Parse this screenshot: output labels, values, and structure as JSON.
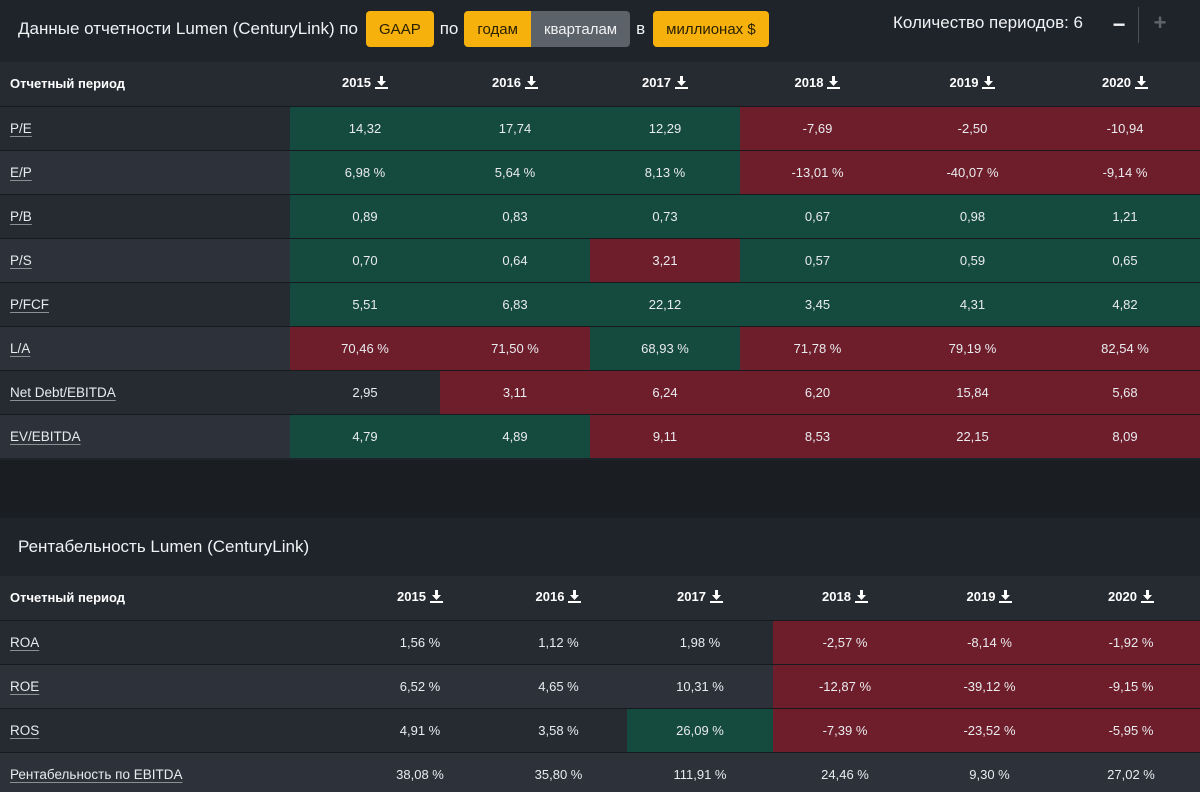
{
  "toolbar": {
    "prefix": "Данные отчетности Lumen (CenturyLink) по",
    "standard_btn": "GAAP",
    "by_text": "по",
    "years_btn": "годам",
    "quarters_btn": "кварталам",
    "in_text": "в",
    "units_btn": "миллионах $",
    "periods_label": "Количество периодов: 6",
    "minus": "−",
    "plus": "+"
  },
  "colors": {
    "accent": "#f6b10d",
    "positive": "#154a3e",
    "negative": "#6e1d2b"
  },
  "multiples": {
    "header_label": "Отчетный период",
    "years": [
      "2015",
      "2016",
      "2017",
      "2018",
      "2019",
      "2020"
    ],
    "rows": [
      {
        "label": "P/E",
        "values": [
          "14,32",
          "17,74",
          "12,29",
          "-7,69",
          "-2,50",
          "-10,94"
        ],
        "status": [
          "g",
          "g",
          "g",
          "r",
          "r",
          "r"
        ]
      },
      {
        "label": "E/P",
        "values": [
          "6,98 %",
          "5,64 %",
          "8,13 %",
          "-13,01 %",
          "-40,07 %",
          "-9,14 %"
        ],
        "status": [
          "g",
          "g",
          "g",
          "r",
          "r",
          "r"
        ]
      },
      {
        "label": "P/B",
        "values": [
          "0,89",
          "0,83",
          "0,73",
          "0,67",
          "0,98",
          "1,21"
        ],
        "status": [
          "g",
          "g",
          "g",
          "g",
          "g",
          "g"
        ]
      },
      {
        "label": "P/S",
        "values": [
          "0,70",
          "0,64",
          "3,21",
          "0,57",
          "0,59",
          "0,65"
        ],
        "status": [
          "g",
          "g",
          "r",
          "g",
          "g",
          "g"
        ]
      },
      {
        "label": "P/FCF",
        "values": [
          "5,51",
          "6,83",
          "22,12",
          "3,45",
          "4,31",
          "4,82"
        ],
        "status": [
          "g",
          "g",
          "g",
          "g",
          "g",
          "g"
        ]
      },
      {
        "label": "L/A",
        "values": [
          "70,46 %",
          "71,50 %",
          "68,93 %",
          "71,78 %",
          "79,19 %",
          "82,54 %"
        ],
        "status": [
          "r",
          "r",
          "g",
          "r",
          "r",
          "r"
        ]
      },
      {
        "label": "Net Debt/EBITDA",
        "values": [
          "2,95",
          "3,11",
          "6,24",
          "6,20",
          "15,84",
          "5,68"
        ],
        "status": [
          "",
          "r",
          "r",
          "r",
          "r",
          "r"
        ]
      },
      {
        "label": "EV/EBITDA",
        "values": [
          "4,79",
          "4,89",
          "9,11",
          "8,53",
          "22,15",
          "8,09"
        ],
        "status": [
          "g",
          "g",
          "r",
          "r",
          "r",
          "r"
        ]
      }
    ]
  },
  "profitability": {
    "title": "Рентабельность Lumen (CenturyLink)",
    "header_label": "Отчетный период",
    "years": [
      "2015",
      "2016",
      "2017",
      "2018",
      "2019",
      "2020"
    ],
    "rows": [
      {
        "label": "ROA",
        "values": [
          "1,56 %",
          "1,12 %",
          "1,98 %",
          "-2,57 %",
          "-8,14 %",
          "-1,92 %"
        ],
        "status": [
          "",
          "",
          "",
          "r",
          "r",
          "r"
        ]
      },
      {
        "label": "ROE",
        "values": [
          "6,52 %",
          "4,65 %",
          "10,31 %",
          "-12,87 %",
          "-39,12 %",
          "-9,15 %"
        ],
        "status": [
          "",
          "",
          "",
          "r",
          "r",
          "r"
        ]
      },
      {
        "label": "ROS",
        "values": [
          "4,91 %",
          "3,58 %",
          "26,09 %",
          "-7,39 %",
          "-23,52 %",
          "-5,95 %"
        ],
        "status": [
          "",
          "",
          "g",
          "r",
          "r",
          "r"
        ]
      },
      {
        "label": "Рентабельность по EBITDA",
        "values": [
          "38,08 %",
          "35,80 %",
          "111,91 %",
          "24,46 %",
          "9,30 %",
          "27,02 %"
        ],
        "status": [
          "",
          "",
          "",
          "",
          "",
          ""
        ]
      }
    ]
  }
}
